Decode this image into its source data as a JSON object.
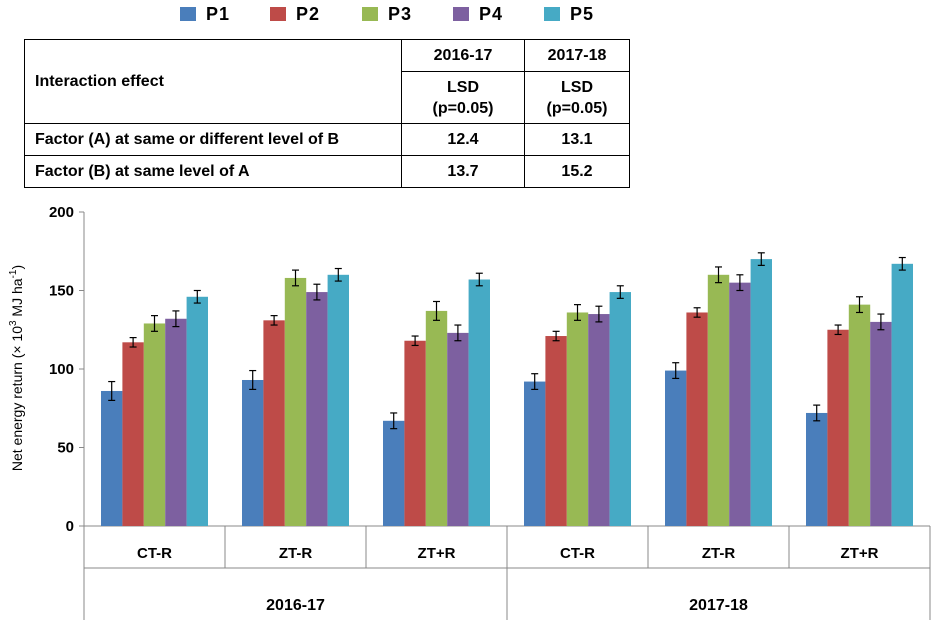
{
  "legend": [
    {
      "label": "P1",
      "color": "#4a7ebb"
    },
    {
      "label": "P2",
      "color": "#be4b48"
    },
    {
      "label": "P3",
      "color": "#98b954"
    },
    {
      "label": "P4",
      "color": "#7d60a0"
    },
    {
      "label": "P5",
      "color": "#46aac5"
    }
  ],
  "table": {
    "header_label": "Interaction effect",
    "year1": "2016-17",
    "year2": "2017-18",
    "lsd_label": "LSD",
    "p_label": "(p=0.05)",
    "rows": [
      {
        "label": "Factor (A) at same or different level of B",
        "v1": "12.4",
        "v2": "13.1"
      },
      {
        "label": "Factor (B) at same level of A",
        "v1": "13.7",
        "v2": "15.2"
      }
    ]
  },
  "chart_data": {
    "type": "bar",
    "title": "",
    "ylabel_main": "Net energy return (× 10",
    "ylabel_sup1": "3",
    "ylabel_mid": " MJ ha",
    "ylabel_sup2": "-1",
    "ylabel_end": ")",
    "ylim": [
      0,
      200
    ],
    "yticks": [
      0,
      50,
      100,
      150,
      200
    ],
    "categories": [
      "CT-R",
      "ZT-R",
      "ZT+R",
      "CT-R",
      "ZT-R",
      "ZT+R"
    ],
    "groups": [
      {
        "label": "2016-17",
        "span": [
          0,
          2
        ]
      },
      {
        "label": "2017-18",
        "span": [
          3,
          5
        ]
      }
    ],
    "series": [
      {
        "name": "P1",
        "values": [
          86,
          93,
          67,
          92,
          99,
          72
        ],
        "errors": [
          6,
          6,
          5,
          5,
          5,
          5
        ]
      },
      {
        "name": "P2",
        "values": [
          117,
          131,
          118,
          121,
          136,
          125
        ],
        "errors": [
          3,
          3,
          3,
          3,
          3,
          3
        ]
      },
      {
        "name": "P3",
        "values": [
          129,
          158,
          137,
          136,
          160,
          141
        ],
        "errors": [
          5,
          5,
          6,
          5,
          5,
          5
        ]
      },
      {
        "name": "P4",
        "values": [
          132,
          149,
          123,
          135,
          155,
          130
        ],
        "errors": [
          5,
          5,
          5,
          5,
          5,
          5
        ]
      },
      {
        "name": "P5",
        "values": [
          146,
          160,
          157,
          149,
          170,
          167
        ],
        "errors": [
          4,
          4,
          4,
          4,
          4,
          4
        ]
      }
    ]
  }
}
